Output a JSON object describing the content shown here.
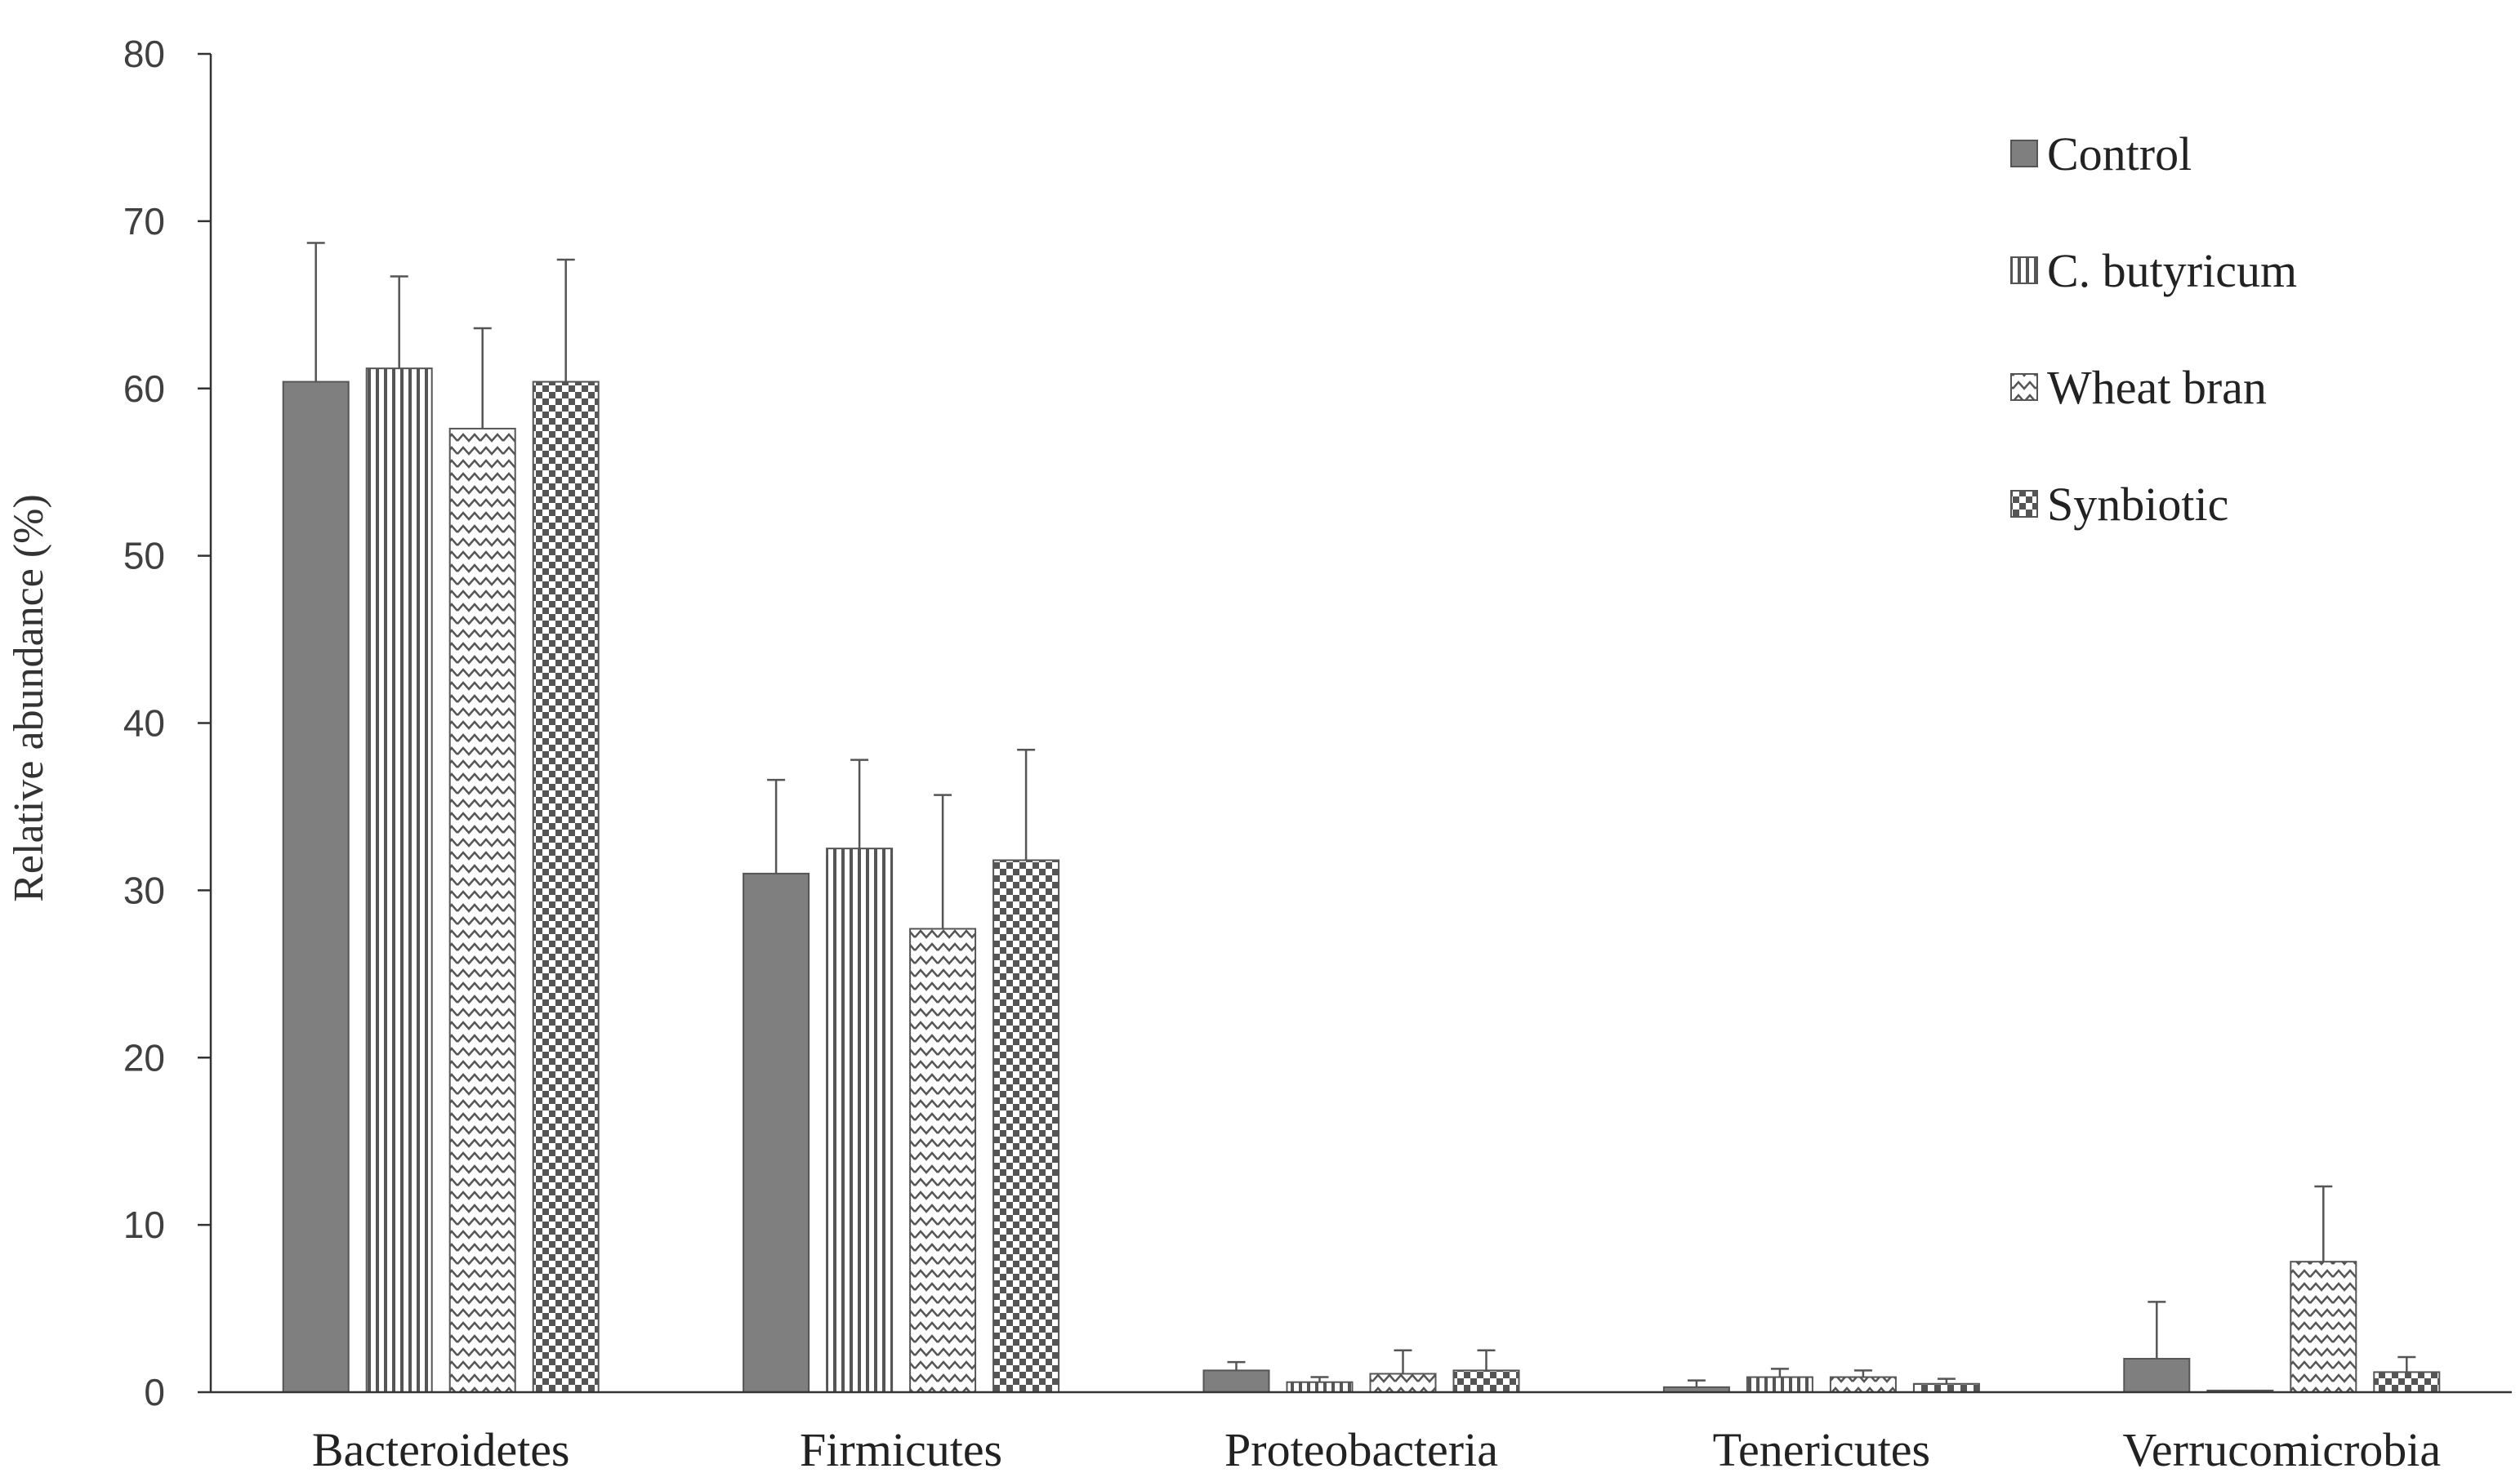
{
  "chart_data": {
    "type": "bar",
    "ylabel": "Relative abundance (%)",
    "ylim": [
      0,
      80
    ],
    "yticks": [
      0,
      10,
      20,
      30,
      40,
      50,
      60,
      70,
      80
    ],
    "grid": false,
    "legend_position": "top-right",
    "error_bars": true,
    "categories": [
      "Bacteroidetes",
      "Firmicutes",
      "Proteobacteria",
      "Tenericutes",
      "Verrucomicrobia"
    ],
    "series": [
      {
        "name": "Control",
        "pattern": "solid",
        "color": "#7f7f7f",
        "values": [
          60.4,
          31.0,
          1.3,
          0.3,
          2.0
        ],
        "errors": [
          8.3,
          5.6,
          0.5,
          0.4,
          3.4
        ]
      },
      {
        "name": "C. butyricum",
        "pattern": "vertical-lines",
        "color": "#555555",
        "values": [
          61.2,
          32.5,
          0.6,
          0.9,
          0.1
        ],
        "errors": [
          5.5,
          5.3,
          0.3,
          0.5,
          0.0
        ]
      },
      {
        "name": "Wheat bran",
        "pattern": "zigzag",
        "color": "#555555",
        "values": [
          57.6,
          27.7,
          1.1,
          0.9,
          7.8
        ],
        "errors": [
          6.0,
          8.0,
          1.4,
          0.4,
          4.5
        ]
      },
      {
        "name": "Synbiotic",
        "pattern": "checker",
        "color": "#555555",
        "values": [
          60.4,
          31.8,
          1.3,
          0.5,
          1.2
        ],
        "errors": [
          7.3,
          6.6,
          1.2,
          0.3,
          0.9
        ]
      }
    ]
  }
}
